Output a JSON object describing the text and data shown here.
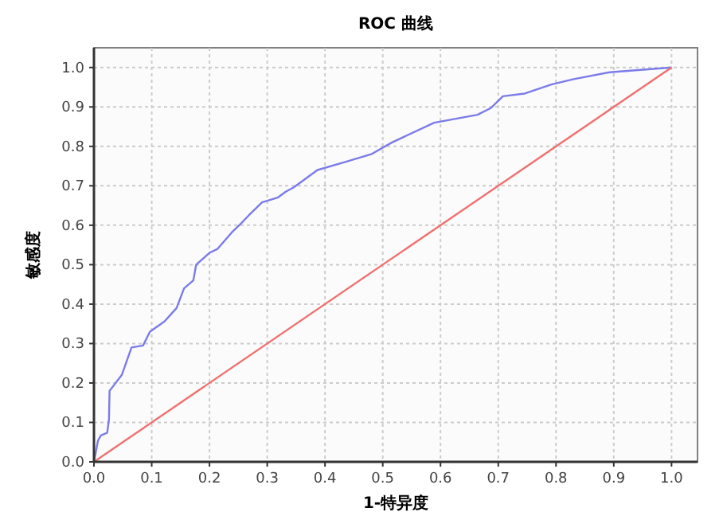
{
  "chart_data": {
    "type": "line",
    "title": "ROC 曲线",
    "xlabel": "1-特异度",
    "ylabel": "敏感度",
    "xlim": [
      0,
      1.045
    ],
    "ylim": [
      0,
      1.05
    ],
    "xticks": [
      {
        "value": 0,
        "label": "0.0"
      },
      0.1,
      0.2,
      0.3,
      0.4,
      0.5,
      0.6,
      0.7,
      0.8,
      0.9,
      {
        "value": 1,
        "label": "1.0"
      }
    ],
    "yticks": [
      {
        "value": 0,
        "label": "0.0"
      },
      0.1,
      0.2,
      0.3,
      0.4,
      0.5,
      0.6,
      0.7,
      0.8,
      0.9,
      {
        "value": 1,
        "label": "1.0"
      }
    ],
    "grid": true,
    "marker": "none",
    "line_style": "solid",
    "series": [
      {
        "color": "#7b7bea",
        "x": [
          0,
          0.007,
          0.012,
          0.023,
          0.026,
          0.027,
          0.048,
          0.053,
          0.065,
          0.085,
          0.097,
          0.122,
          0.143,
          0.156,
          0.172,
          0.177,
          0.2,
          0.214,
          0.24,
          0.255,
          0.268,
          0.291,
          0.318,
          0.332,
          0.346,
          0.387,
          0.434,
          0.48,
          0.516,
          0.589,
          0.664,
          0.687,
          0.708,
          0.746,
          0.792,
          0.829,
          0.893,
          1
        ],
        "values": [
          0,
          0.054,
          0.067,
          0.074,
          0.108,
          0.18,
          0.22,
          0.24,
          0.29,
          0.295,
          0.33,
          0.356,
          0.39,
          0.44,
          0.46,
          0.5,
          0.53,
          0.54,
          0.584,
          0.605,
          0.625,
          0.658,
          0.67,
          0.685,
          0.696,
          0.74,
          0.76,
          0.78,
          0.81,
          0.86,
          0.88,
          0.897,
          0.927,
          0.934,
          0.957,
          0.97,
          0.988,
          1
        ]
      },
      {
        "color": "#f07070",
        "x": [
          0,
          1
        ],
        "values": [
          0,
          1
        ]
      }
    ]
  }
}
